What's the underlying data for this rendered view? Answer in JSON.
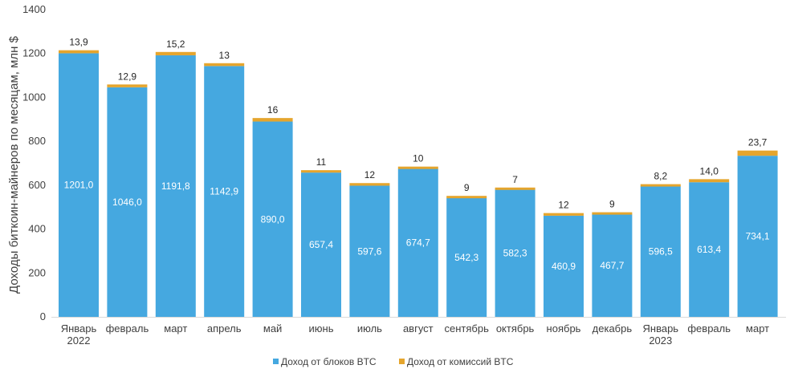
{
  "chart_data": {
    "type": "bar",
    "stacked": true,
    "title": "",
    "ylabel": "Доходы биткоин-майнеров по месяцам, млн $",
    "xlabel": "",
    "ylim": [
      0,
      1400
    ],
    "yticks": [
      0,
      200,
      400,
      600,
      800,
      1000,
      1200,
      1400
    ],
    "grid": false,
    "legend": "bottom",
    "categories": [
      [
        "Январь",
        "2022"
      ],
      [
        "февраль"
      ],
      [
        "март"
      ],
      [
        "апрель"
      ],
      [
        "май"
      ],
      [
        "июнь"
      ],
      [
        "июль"
      ],
      [
        "август"
      ],
      [
        "сентябрь"
      ],
      [
        "октябрь"
      ],
      [
        "ноябрь"
      ],
      [
        "декабрь"
      ],
      [
        "Январь",
        "2023"
      ],
      [
        "февраль"
      ],
      [
        "март"
      ]
    ],
    "series": [
      {
        "name": "Доход от блоков BTC",
        "color": "#45A8E0",
        "values": [
          1201.0,
          1046.0,
          1191.8,
          1142.9,
          890.0,
          657.4,
          597.6,
          674.7,
          542.3,
          582.3,
          460.9,
          467.7,
          596.5,
          613.4,
          734.1
        ],
        "labels": [
          "1201,0",
          "1046,0",
          "1191,8",
          "1142,9",
          "890,0",
          "657,4",
          "597,6",
          "674,7",
          "542,3",
          "582,3",
          "460,9",
          "467,7",
          "596,5",
          "613,4",
          "734,1"
        ]
      },
      {
        "name": "Доход от комиссий BTC",
        "color": "#E5A52D",
        "values": [
          13.9,
          12.9,
          15.2,
          13,
          16,
          11,
          12,
          10,
          9,
          7,
          12,
          9,
          8.2,
          14.0,
          23.7
        ],
        "labels": [
          "13,9",
          "12,9",
          "15,2",
          "13",
          "16",
          "11",
          "12",
          "10",
          "9",
          "7",
          "12",
          "9",
          "8,2",
          "14,0",
          "23,7"
        ]
      }
    ]
  }
}
